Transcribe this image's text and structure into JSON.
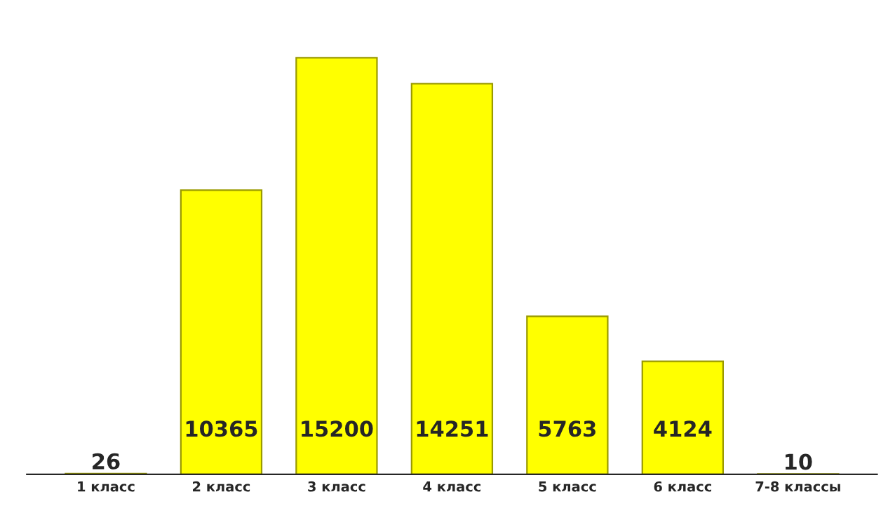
{
  "chart_data": {
    "type": "bar",
    "categories": [
      "1 класс",
      "2 класс",
      "3 класс",
      "4 класс",
      "5 класс",
      "6 класс",
      "7-8 классы"
    ],
    "values": [
      26,
      10365,
      15200,
      14251,
      5763,
      4124,
      10
    ],
    "color": "#ffff00",
    "data_labels": true,
    "grid": false,
    "legend": false
  }
}
